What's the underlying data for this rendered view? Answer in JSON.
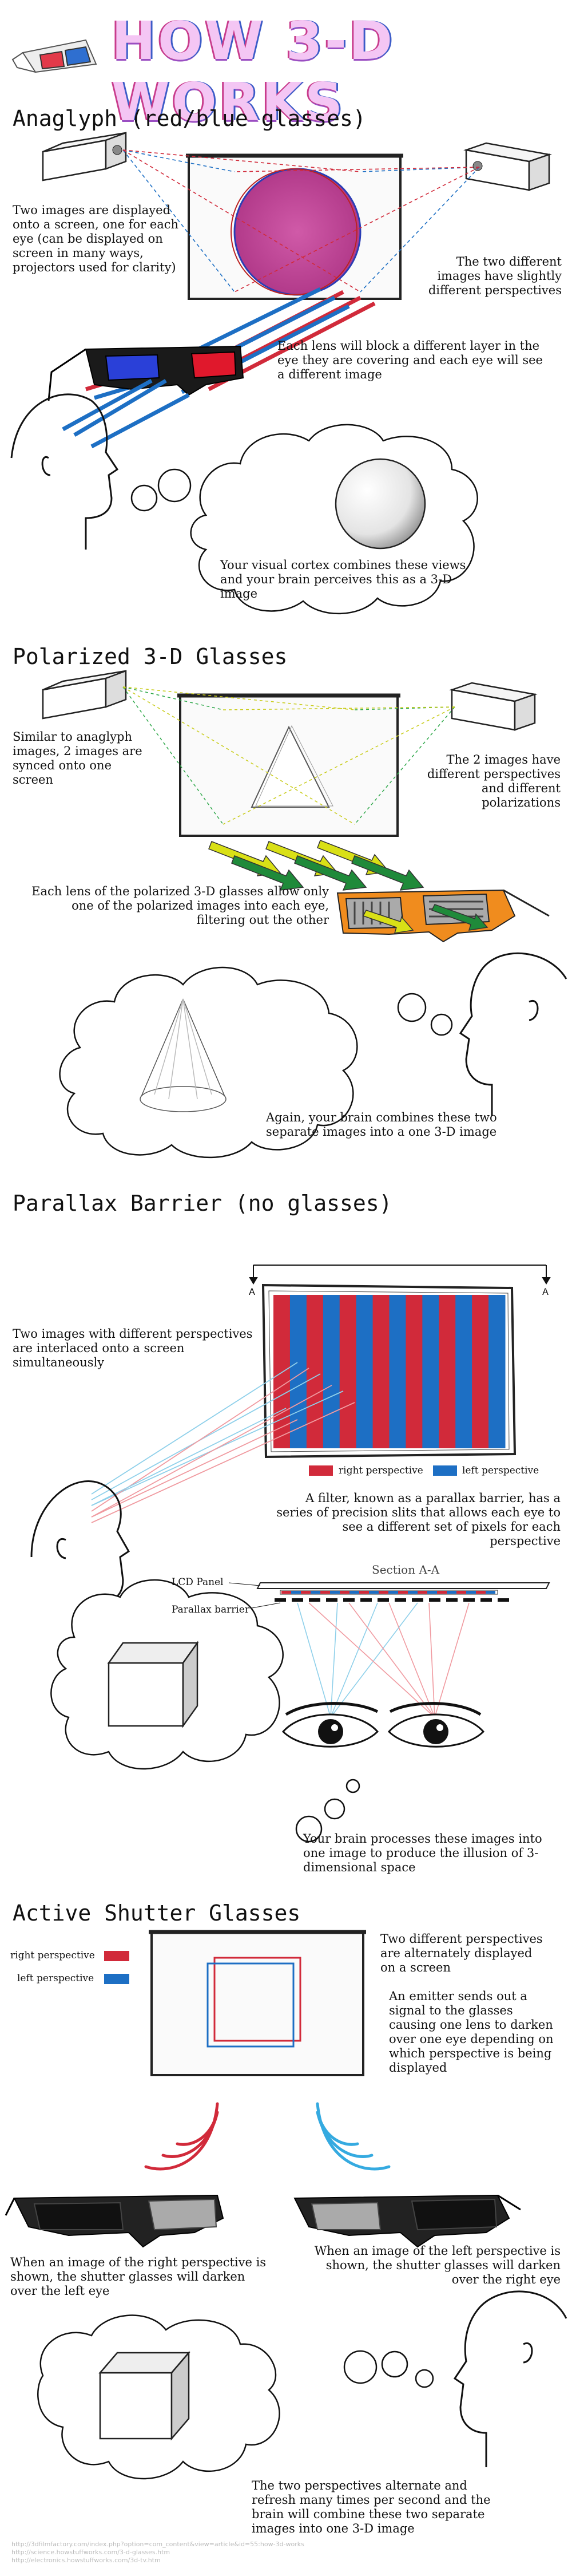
{
  "title": "HOW 3-D WORKS",
  "colors": {
    "red": "#d12a3a",
    "blue": "#1d6fc4",
    "pink": "#c9499b",
    "yellow": "#d9e016",
    "green": "#1f8a3a",
    "orange": "#f08c1e"
  },
  "sections": {
    "anaglyph": {
      "heading": "Anaglyph (red/blue glasses)",
      "text_display": "Two images are displayed onto a screen, one for each eye (can be displayed on screen in many ways, projectors used for clarity)",
      "text_perspectives": "The two different images have slightly different perspectives",
      "text_lens": "Each lens will block a different layer in the eye they are covering and each eye will see a different image",
      "text_cortex": "Your visual cortex combines these views and your brain perceives this as a 3-D image"
    },
    "polarized": {
      "heading": "Polarized 3-D Glasses",
      "text_synced": "Similar to anaglyph images, 2 images are synced onto one screen",
      "text_polarizations": "The 2 images have different perspectives and different polarizations",
      "text_lens": "Each lens of the polarized 3-D glasses allow only one of the polarized images into each eye, filtering out the other",
      "text_brain": "Again, your brain combines these two separate images into a one 3-D image"
    },
    "parallax": {
      "heading": "Parallax Barrier (no glasses)",
      "marker_a": "A",
      "text_interlaced": "Two images with different perspectives are interlaced onto a screen simultaneously",
      "legend_right": "right perspective",
      "legend_left": "left perspective",
      "text_filter": "A filter, known as a parallax barrier, has a series of precision slits that allows each eye to see a different set of pixels for each perspective",
      "section_label": "Section A-A",
      "lcd_label": "LCD Panel",
      "barrier_label": "Parallax  barrier",
      "text_brain": "Your brain processes these images into one image to produce the illusion of 3-dimensional space"
    },
    "shutter": {
      "heading": "Active Shutter Glasses",
      "legend_right": "right perspective",
      "legend_left": "left perspective",
      "text_alternate": "Two different perspectives are alternately displayed on a screen",
      "text_emitter": "An emitter sends out a signal to the glasses causing one lens to darken over one eye depending on which perspective is being displayed",
      "text_right": "When an image of the right perspective is shown, the shutter glasses will darken over the left eye",
      "text_left": "When an image of the left perspective is shown, the shutter glasses will darken over the right eye",
      "text_refresh": "The two perspectives alternate and refresh many times per second and the brain will combine these two separate images into one 3-D image"
    }
  },
  "sources": [
    "http://3dfilmfactory.com/index.php?option=com_content&view=article&id=55:how-3d-works",
    "http://science.howstuffworks.com/3-d-glasses.htm",
    "http://electronics.howstuffworks.com/3d-tv.htm"
  ]
}
